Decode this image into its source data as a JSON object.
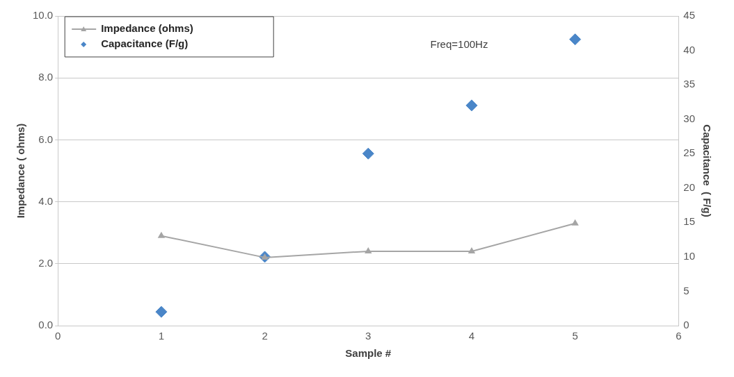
{
  "chart_data": {
    "type": "line",
    "xlabel": "Sample #",
    "ylabel": "Impedance ( ohms)",
    "y2label": "Capacitance  ( F/g)",
    "x": [
      1,
      2,
      3,
      4,
      5
    ],
    "series": [
      {
        "name": "Impedance (ohms)",
        "type": "line",
        "color": "#a5a5a5",
        "marker": "triangle",
        "values": [
          2.9,
          2.2,
          2.4,
          2.4,
          3.3
        ]
      },
      {
        "name": "Capacitance (F/g)",
        "type": "scatter",
        "axis": "y2",
        "color": "#4a86c8",
        "marker": "diamond",
        "values": [
          2,
          10,
          25,
          32,
          41.6
        ]
      }
    ],
    "xlim": [
      0,
      6
    ],
    "xticks": [
      0,
      1,
      2,
      3,
      4,
      5,
      6
    ],
    "ylim": [
      0,
      10
    ],
    "yticks": [
      {
        "value": 0,
        "label": "0.0"
      },
      {
        "value": 2,
        "label": "2.0"
      },
      {
        "value": 4,
        "label": "4.0"
      },
      {
        "value": 6,
        "label": "6.0"
      },
      {
        "value": 8,
        "label": "8.0"
      },
      {
        "value": 10,
        "label": "10.0"
      }
    ],
    "y2lim": [
      0,
      45
    ],
    "y2ticks": [
      0,
      5,
      10,
      15,
      20,
      25,
      30,
      35,
      40,
      45
    ],
    "grid": "y",
    "legend": "top left",
    "annotations": [
      "Freq=100Hz"
    ]
  }
}
